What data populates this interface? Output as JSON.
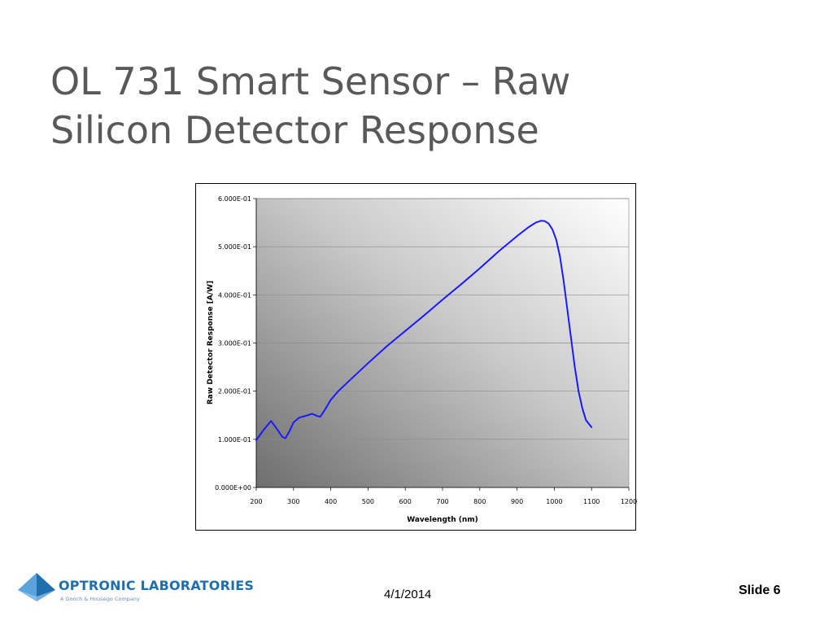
{
  "slide": {
    "title_lines": [
      "OL 731 Smart Sensor – Raw",
      "Silicon Detector Response"
    ],
    "date": "4/1/2014",
    "slide_number_label": "Slide 6"
  },
  "logo": {
    "name": "OPTRONIC LABORATORIES",
    "tagline": "A Gooch & Housego Company",
    "icon": "blue-pyramid-icon",
    "color": "#1f6fae"
  },
  "chart_data": {
    "type": "line",
    "title": "",
    "xlabel": "Wavelength (nm)",
    "ylabel": "Raw Detector Response [A/W]",
    "xlim": [
      200,
      1200
    ],
    "ylim": [
      0,
      0.6
    ],
    "x_ticks": [
      200,
      300,
      400,
      500,
      600,
      700,
      800,
      900,
      1000,
      1100,
      1200
    ],
    "x_tick_labels": [
      "200",
      "300",
      "400",
      "500",
      "600",
      "700",
      "800",
      "900",
      "1000",
      "1100",
      "1200"
    ],
    "y_ticks": [
      0,
      0.1,
      0.2,
      0.3,
      0.4,
      0.5,
      0.6
    ],
    "y_tick_labels": [
      "0.000E+00",
      "1.000E-01",
      "2.000E-01",
      "3.000E-01",
      "4.000E-01",
      "5.000E-01",
      "6.000E-01"
    ],
    "grid": true,
    "legend": "none",
    "line_color": "#1a1aff",
    "plot_background": "gradient dark-gray (lower-left) to white (upper-right)",
    "series": [
      {
        "x": [
          200,
          220,
          240,
          255,
          270,
          278,
          290,
          300,
          315,
          330,
          350,
          365,
          372,
          385,
          400,
          420,
          450,
          500,
          550,
          600,
          650,
          700,
          750,
          800,
          850,
          900,
          930,
          950,
          965,
          975,
          985,
          995,
          1005,
          1015,
          1025,
          1035,
          1045,
          1055,
          1065,
          1075,
          1085,
          1100
        ],
        "y": [
          0.098,
          0.12,
          0.138,
          0.122,
          0.105,
          0.102,
          0.118,
          0.135,
          0.145,
          0.148,
          0.153,
          0.148,
          0.147,
          0.162,
          0.182,
          0.2,
          0.222,
          0.258,
          0.293,
          0.325,
          0.357,
          0.39,
          0.422,
          0.455,
          0.49,
          0.522,
          0.54,
          0.55,
          0.554,
          0.553,
          0.548,
          0.536,
          0.515,
          0.48,
          0.43,
          0.37,
          0.31,
          0.25,
          0.2,
          0.165,
          0.14,
          0.125
        ]
      }
    ]
  }
}
